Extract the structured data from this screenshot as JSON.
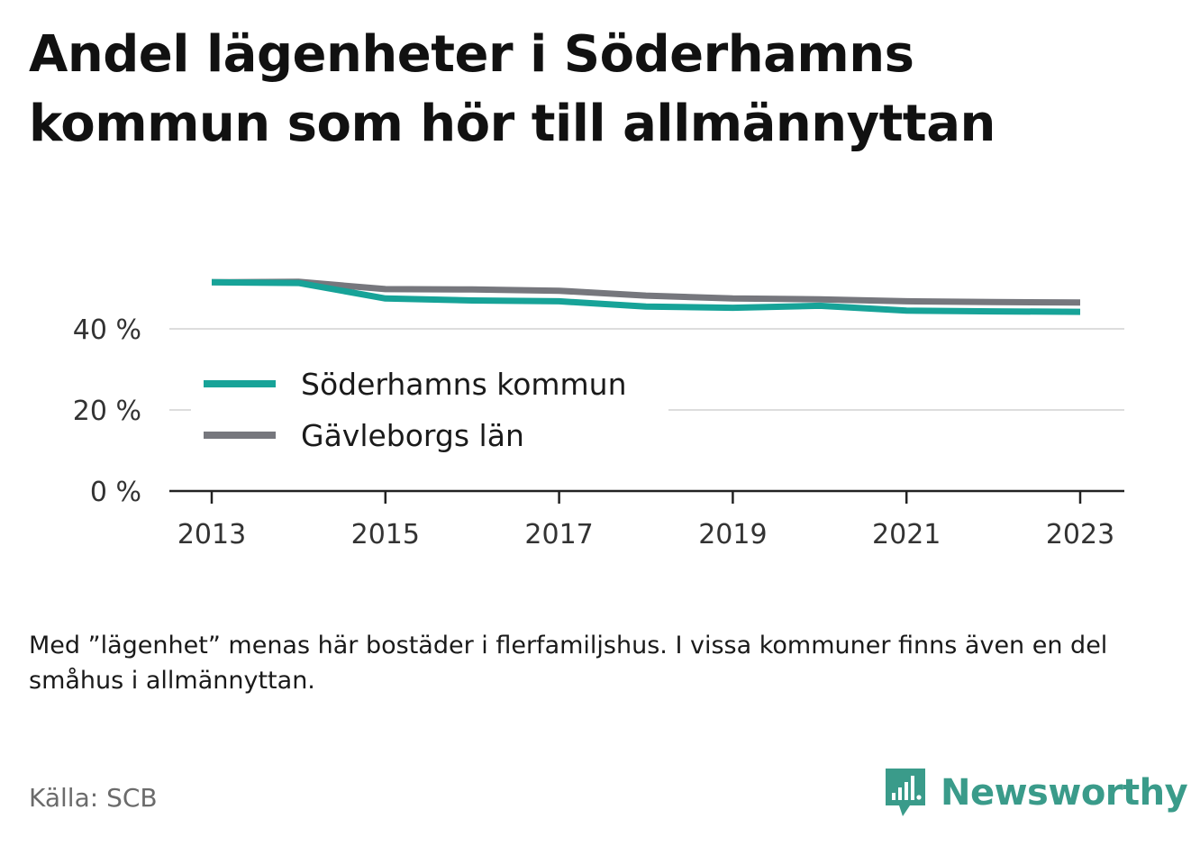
{
  "title": "Andel lägenheter i Söderhamns kommun som hör till allmännyttan",
  "note": "Med ”lägenhet” menas här bostäder i flerfamiljshus. I vissa kommuner finns även en del småhus i allmännyttan.",
  "source": "Källa: SCB",
  "brand": {
    "name": "Newsworthy",
    "icon": "bar-chart-speech-bubble-icon",
    "color": "#3a9b8a"
  },
  "chart_data": {
    "type": "line",
    "x": [
      2013,
      2014,
      2015,
      2016,
      2017,
      2018,
      2019,
      2020,
      2021,
      2022,
      2023
    ],
    "xticks": [
      "2013",
      "2015",
      "2017",
      "2019",
      "2021",
      "2023"
    ],
    "yticks": [
      "0 %",
      "20 %",
      "40 %"
    ],
    "ylim": [
      0,
      60
    ],
    "grid": true,
    "legend": "inside-left",
    "series": [
      {
        "name": "Söderhamns kommun",
        "color": "#17a398",
        "values": [
          51.5,
          51.3,
          47.5,
          47.0,
          46.8,
          45.5,
          45.2,
          45.7,
          44.5,
          44.3,
          44.2
        ]
      },
      {
        "name": "Gävleborgs län",
        "color": "#76777d",
        "values": [
          51.5,
          51.6,
          49.8,
          49.7,
          49.4,
          48.2,
          47.5,
          47.3,
          46.8,
          46.6,
          46.5
        ]
      }
    ]
  }
}
